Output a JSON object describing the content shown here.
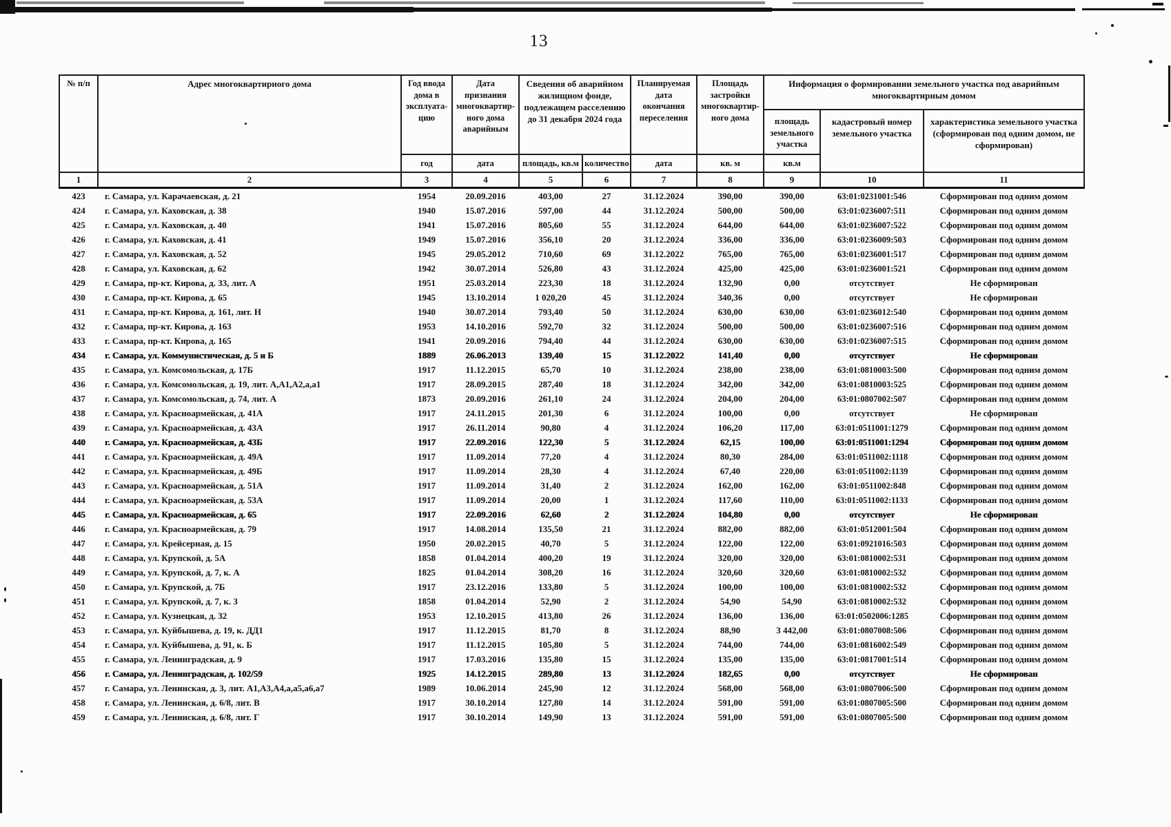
{
  "page_number": "13",
  "table": {
    "header": {
      "col1": "№ п/п",
      "col2": "Адрес многоквартирного дома",
      "col3": "Год ввода\nдома в\nэксплуата-\nцию",
      "col4": "Дата\nпризнания\nмногоквартир-\nного дома\nаварийным",
      "col5_6": "Сведения об аварийном\nжилищном фонде,\nподлежащем расселению\nдо 31 декабря 2024 года",
      "col7": "Планируемая\nдата\nокончания\nпереселения",
      "col8": "Площадь\nзастройки\nмногоквартир-\nного дома",
      "col9_11": "Информация о формировании земельного участка под аварийным\nмногоквартирным домом",
      "col9": "площадь\nземельного\nучастка",
      "col10": "кадастровый номер\nземельного участка",
      "col11": "характеристика земельного участка\n(сформирован под одним домом, не\nсформирован)"
    },
    "units": {
      "col3": "год",
      "col4": "дата",
      "col5": "площадь, кв.м",
      "col6": "количество",
      "col7": "дата",
      "col8": "кв. м",
      "col9": "кв.м"
    },
    "numbers": [
      "1",
      "2",
      "3",
      "4",
      "5",
      "6",
      "7",
      "8",
      "9",
      "10",
      "11"
    ],
    "bold_rows": [
      "434",
      "440",
      "445",
      "456"
    ],
    "rows": [
      [
        "423",
        "г. Самара, ул. Карачаевская, д. 21",
        "1954",
        "20.09.2016",
        "403,00",
        "27",
        "31.12.2024",
        "390,00",
        "390,00",
        "63:01:0231001:546",
        "Сформирован под одним домом"
      ],
      [
        "424",
        "г. Самара, ул. Каховская, д. 38",
        "1940",
        "15.07.2016",
        "597,00",
        "44",
        "31.12.2024",
        "500,00",
        "500,00",
        "63:01:0236007:511",
        "Сформирован под одним домом"
      ],
      [
        "425",
        "г. Самара, ул. Каховская, д. 40",
        "1941",
        "15.07.2016",
        "805,60",
        "55",
        "31.12.2024",
        "644,00",
        "644,00",
        "63:01:0236007:522",
        "Сформирован под одним домом"
      ],
      [
        "426",
        "г. Самара, ул. Каховская, д. 41",
        "1949",
        "15.07.2016",
        "356,10",
        "20",
        "31.12.2024",
        "336,00",
        "336,00",
        "63:01:0236009:503",
        "Сформирован под одним домом"
      ],
      [
        "427",
        "г. Самара, ул. Каховская, д. 52",
        "1945",
        "29.05.2012",
        "710,60",
        "69",
        "31.12.2022",
        "765,00",
        "765,00",
        "63:01:0236001:517",
        "Сформирован под одним домом"
      ],
      [
        "428",
        "г. Самара, ул. Каховская, д. 62",
        "1942",
        "30.07.2014",
        "526,80",
        "43",
        "31.12.2024",
        "425,00",
        "425,00",
        "63:01:0236001:521",
        "Сформирован под одним домом"
      ],
      [
        "429",
        "г. Самара, пр-кт. Кирова, д. 33, лит. А",
        "1951",
        "25.03.2014",
        "223,30",
        "18",
        "31.12.2024",
        "132,90",
        "0,00",
        "отсутствует",
        "Не сформирован"
      ],
      [
        "430",
        "г. Самара, пр-кт. Кирова, д. 65",
        "1945",
        "13.10.2014",
        "1 020,20",
        "45",
        "31.12.2024",
        "340,36",
        "0,00",
        "отсутствует",
        "Не сформирован"
      ],
      [
        "431",
        "г. Самара, пр-кт. Кирова, д. 161, лит. Н",
        "1940",
        "30.07.2014",
        "793,40",
        "50",
        "31.12.2024",
        "630,00",
        "630,00",
        "63:01:0236012:540",
        "Сформирован под одним домом"
      ],
      [
        "432",
        "г. Самара, пр-кт. Кирова, д. 163",
        "1953",
        "14.10.2016",
        "592,70",
        "32",
        "31.12.2024",
        "500,00",
        "500,00",
        "63:01:0236007:516",
        "Сформирован под одним домом"
      ],
      [
        "433",
        "г. Самара, пр-кт. Кирова, д. 165",
        "1941",
        "20.09.2016",
        "794,40",
        "44",
        "31.12.2024",
        "630,00",
        "630,00",
        "63:01:0236007:515",
        "Сформирован под одним домом"
      ],
      [
        "434",
        "г. Самара, ул. Коммунистическая, д. 5 и Б",
        "1889",
        "26.06.2013",
        "139,40",
        "15",
        "31.12.2022",
        "141,40",
        "0,00",
        "отсутствует",
        "Не сформирован"
      ],
      [
        "435",
        "г. Самара, ул. Комсомольская, д. 17Б",
        "1917",
        "11.12.2015",
        "65,70",
        "10",
        "31.12.2024",
        "238,00",
        "238,00",
        "63:01:0810003:500",
        "Сформирован под одним домом"
      ],
      [
        "436",
        "г. Самара, ул. Комсомольская, д. 19, лит. А,А1,А2,а,а1",
        "1917",
        "28.09.2015",
        "287,40",
        "18",
        "31.12.2024",
        "342,00",
        "342,00",
        "63:01:0810003:525",
        "Сформирован под одним домом"
      ],
      [
        "437",
        "г. Самара, ул. Комсомольская, д. 74, лит. А",
        "1873",
        "20.09.2016",
        "261,10",
        "24",
        "31.12.2024",
        "204,00",
        "204,00",
        "63:01:0807002:507",
        "Сформирован под одним домом"
      ],
      [
        "438",
        "г. Самара, ул. Красноармейская, д. 41А",
        "1917",
        "24.11.2015",
        "201,30",
        "6",
        "31.12.2024",
        "100,00",
        "0,00",
        "отсутствует",
        "Не сформирован"
      ],
      [
        "439",
        "г. Самара, ул. Красноармейская, д. 43А",
        "1917",
        "26.11.2014",
        "90,80",
        "4",
        "31.12.2024",
        "106,20",
        "117,00",
        "63:01:0511001:1279",
        "Сформирован под одним домом"
      ],
      [
        "440",
        "г. Самара, ул. Красноармейская, д. 43Б",
        "1917",
        "22.09.2016",
        "122,30",
        "5",
        "31.12.2024",
        "62,15",
        "100,00",
        "63:01:0511001:1294",
        "Сформирован под одним домом"
      ],
      [
        "441",
        "г. Самара, ул. Красноармейская, д. 49А",
        "1917",
        "11.09.2014",
        "77,20",
        "4",
        "31.12.2024",
        "80,30",
        "284,00",
        "63:01:0511002:1118",
        "Сформирован под одним домом"
      ],
      [
        "442",
        "г. Самара, ул. Красноармейская, д. 49Б",
        "1917",
        "11.09.2014",
        "28,30",
        "4",
        "31.12.2024",
        "67,40",
        "220,00",
        "63:01:0511002:1139",
        "Сформирован под одним домом"
      ],
      [
        "443",
        "г. Самара, ул. Красноармейская, д. 51А",
        "1917",
        "11.09.2014",
        "31,40",
        "2",
        "31.12.2024",
        "162,00",
        "162,00",
        "63:01:0511002:848",
        "Сформирован под одним домом"
      ],
      [
        "444",
        "г. Самара, ул. Красноармейская, д. 53А",
        "1917",
        "11.09.2014",
        "20,00",
        "1",
        "31.12.2024",
        "117,60",
        "110,00",
        "63:01:0511002:1133",
        "Сформирован под одним домом"
      ],
      [
        "445",
        "г. Самара, ул. Красноармейская, д. 65",
        "1917",
        "22.09.2016",
        "62,60",
        "2",
        "31.12.2024",
        "104,80",
        "0,00",
        "отсутствует",
        "Не сформирован"
      ],
      [
        "446",
        "г. Самара, ул. Красноармейская, д. 79",
        "1917",
        "14.08.2014",
        "135,50",
        "21",
        "31.12.2024",
        "882,00",
        "882,00",
        "63:01:0512001:504",
        "Сформирован под одним домом"
      ],
      [
        "447",
        "г. Самара, ул. Крейсерная, д. 15",
        "1950",
        "20.02.2015",
        "40,70",
        "5",
        "31.12.2024",
        "122,00",
        "122,00",
        "63:01:0921016:503",
        "Сформирован под одним домом"
      ],
      [
        "448",
        "г. Самара, ул. Крупской, д. 5А",
        "1858",
        "01.04.2014",
        "400,20",
        "19",
        "31.12.2024",
        "320,00",
        "320,00",
        "63:01:0810002:531",
        "Сформирован под одним домом"
      ],
      [
        "449",
        "г. Самара, ул. Крупской, д. 7, к. А",
        "1825",
        "01.04.2014",
        "308,20",
        "16",
        "31.12.2024",
        "320,60",
        "320,60",
        "63:01:0810002:532",
        "Сформирован под одним домом"
      ],
      [
        "450",
        "г. Самара, ул. Крупской, д. 7Б",
        "1917",
        "23.12.2016",
        "133,80",
        "5",
        "31.12.2024",
        "100,00",
        "100,00",
        "63:01:0810002:532",
        "Сформирован под одним домом"
      ],
      [
        "451",
        "г. Самара, ул. Крупской, д. 7, к. 3",
        "1858",
        "01.04.2014",
        "52,90",
        "2",
        "31.12.2024",
        "54,90",
        "54,90",
        "63:01:0810002:532",
        "Сформирован под одним домом"
      ],
      [
        "452",
        "г. Самара, ул. Кузнецкая, д. 32",
        "1953",
        "12.10.2015",
        "413,80",
        "26",
        "31.12.2024",
        "136,00",
        "136,00",
        "63:01:0502006:1285",
        "Сформирован под одним домом"
      ],
      [
        "453",
        "г. Самара, ул. Куйбышева, д. 19, к. ДД1",
        "1917",
        "11.12.2015",
        "81,70",
        "8",
        "31.12.2024",
        "88,90",
        "3 442,00",
        "63:01:0807008:506",
        "Сформирован под одним домом"
      ],
      [
        "454",
        "г. Самара, ул. Куйбышева, д. 91, к. Б",
        "1917",
        "11.12.2015",
        "105,80",
        "5",
        "31.12.2024",
        "744,00",
        "744,00",
        "63:01:0816002:549",
        "Сформирован под одним домом"
      ],
      [
        "455",
        "г. Самара, ул. Ленинградская, д. 9",
        "1917",
        "17.03.2016",
        "135,80",
        "15",
        "31.12.2024",
        "135,00",
        "135,00",
        "63:01:0817001:514",
        "Сформирован под одним домом"
      ],
      [
        "456",
        "г. Самара, ул. Ленинградская, д. 102/59",
        "1925",
        "14.12.2015",
        "289,80",
        "13",
        "31.12.2024",
        "182,65",
        "0,00",
        "отсутствует",
        "Не сформирован"
      ],
      [
        "457",
        "г. Самара, ул. Ленинская, д. 3, лит. А1,А3,А4,а,а5,а6,а7",
        "1989",
        "10.06.2014",
        "245,90",
        "12",
        "31.12.2024",
        "568,00",
        "568,00",
        "63:01:0807006:500",
        "Сформирован под одним домом"
      ],
      [
        "458",
        "г. Самара, ул. Ленинская, д. 6/8, лит. В",
        "1917",
        "30.10.2014",
        "127,80",
        "14",
        "31.12.2024",
        "591,00",
        "591,00",
        "63:01:0807005:500",
        "Сформирован под одним домом"
      ],
      [
        "459",
        "г. Самара, ул. Ленинская, д. 6/8, лит. Г",
        "1917",
        "30.10.2014",
        "149,90",
        "13",
        "31.12.2024",
        "591,00",
        "591,00",
        "63:01:0807005:500",
        "Сформирован под одним домом"
      ]
    ]
  }
}
